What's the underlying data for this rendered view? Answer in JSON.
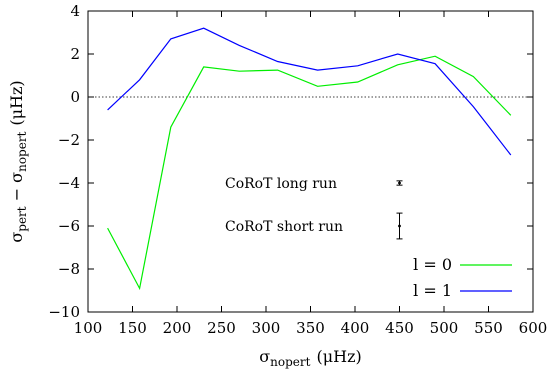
{
  "chart_data": {
    "type": "line",
    "xlabel": {
      "main": "σ",
      "sub": "nopert",
      "unit": "(μHz)"
    },
    "ylabel": {
      "main": "σ",
      "sub1": "pert",
      "minus": " − σ",
      "sub2": "nopert",
      "unit": "(μHz)"
    },
    "xlim": [
      100,
      600
    ],
    "ylim": [
      -10,
      4
    ],
    "xticks": [
      100,
      150,
      200,
      250,
      300,
      350,
      400,
      450,
      500,
      550,
      600
    ],
    "yticks": [
      -10,
      -8,
      -6,
      -4,
      -2,
      0,
      2,
      4
    ],
    "xtick_labels": [
      "100",
      "150",
      "200",
      "250",
      "300",
      "350",
      "400",
      "450",
      "500",
      "550",
      "600"
    ],
    "ytick_labels": [
      "−10",
      "−8",
      "−6",
      "−4",
      "−2",
      "0",
      "2",
      "4"
    ],
    "zero_line": true,
    "grid": false,
    "legend_position": "bottom-right",
    "series": [
      {
        "name": "l = 0",
        "color": "#00ee00",
        "x": [
          122,
          158,
          193,
          230,
          270,
          313,
          358,
          403,
          448,
          490,
          533,
          575
        ],
        "y": [
          -6.1,
          -8.9,
          -1.4,
          1.4,
          1.2,
          1.25,
          0.5,
          0.7,
          1.5,
          1.9,
          0.95,
          -0.85
        ]
      },
      {
        "name": "l = 1",
        "color": "#0000ff",
        "x": [
          122,
          158,
          193,
          230,
          270,
          313,
          358,
          403,
          448,
          490,
          533,
          575
        ],
        "y": [
          -0.6,
          0.8,
          2.7,
          3.2,
          2.4,
          1.65,
          1.25,
          1.45,
          2.0,
          1.55,
          -0.45,
          -2.7
        ]
      }
    ],
    "error_bars": [
      {
        "label": "CoRoT long run",
        "x": 450,
        "y": -4.0,
        "err": 0.1
      },
      {
        "label": "CoRoT short run",
        "x": 450,
        "y": -6.0,
        "err": 0.6
      }
    ]
  }
}
